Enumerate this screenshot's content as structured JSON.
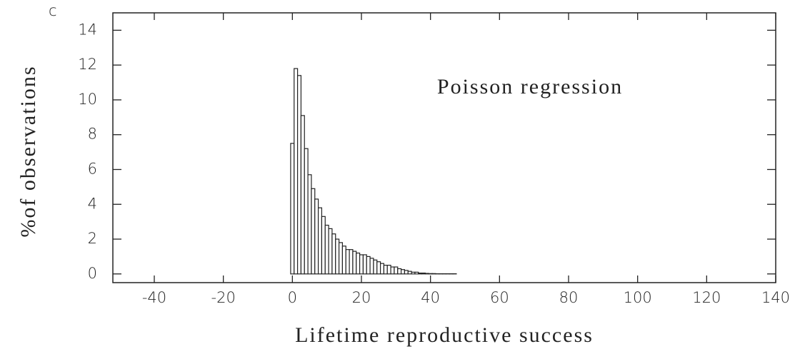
{
  "chart_data": {
    "type": "histogram",
    "panel_label": "c",
    "annotation": "Poisson regression",
    "xlabel": "Lifetime reproductive success",
    "ylabel": "%of observations",
    "bins": [
      -0.5,
      0.5,
      1.5,
      2.5,
      3.5,
      4.5,
      5.5,
      6.5,
      7.5,
      8.5,
      9.5,
      10.5,
      11.5,
      12.5,
      13.5,
      14.5,
      15.5,
      16.5,
      17.5,
      18.5,
      19.5,
      20.5,
      21.5,
      22.5,
      23.5,
      24.5,
      25.5,
      26.5,
      27.5,
      28.5,
      29.5,
      30.5,
      31.5,
      32.5,
      33.5,
      34.5,
      35.5,
      36.5,
      37.5,
      38.5,
      39.5,
      40.5,
      41.5,
      42.5,
      43.5,
      44.5,
      45.5,
      46.5,
      47.5
    ],
    "values": [
      7.5,
      11.8,
      11.4,
      9.1,
      7.2,
      5.7,
      4.9,
      4.3,
      3.8,
      3.3,
      2.8,
      2.6,
      2.3,
      2.0,
      1.8,
      1.6,
      1.4,
      1.4,
      1.3,
      1.2,
      1.1,
      1.1,
      1.0,
      0.9,
      0.8,
      0.7,
      0.6,
      0.5,
      0.5,
      0.4,
      0.4,
      0.3,
      0.25,
      0.2,
      0.15,
      0.1,
      0.1,
      0.05,
      0.05,
      0.03,
      0.02,
      0.02,
      0.01,
      0.01,
      0.01,
      0.01,
      0.01,
      0.01
    ],
    "color": "#ffffff",
    "edgecolor": "#222222",
    "xlim": [
      -52,
      140
    ],
    "ylim": [
      -0.5,
      15
    ],
    "xticks": [
      -40,
      -20,
      0,
      20,
      40,
      60,
      80,
      100,
      120,
      140
    ],
    "yticks": [
      0,
      2,
      4,
      6,
      8,
      10,
      12,
      14
    ]
  }
}
